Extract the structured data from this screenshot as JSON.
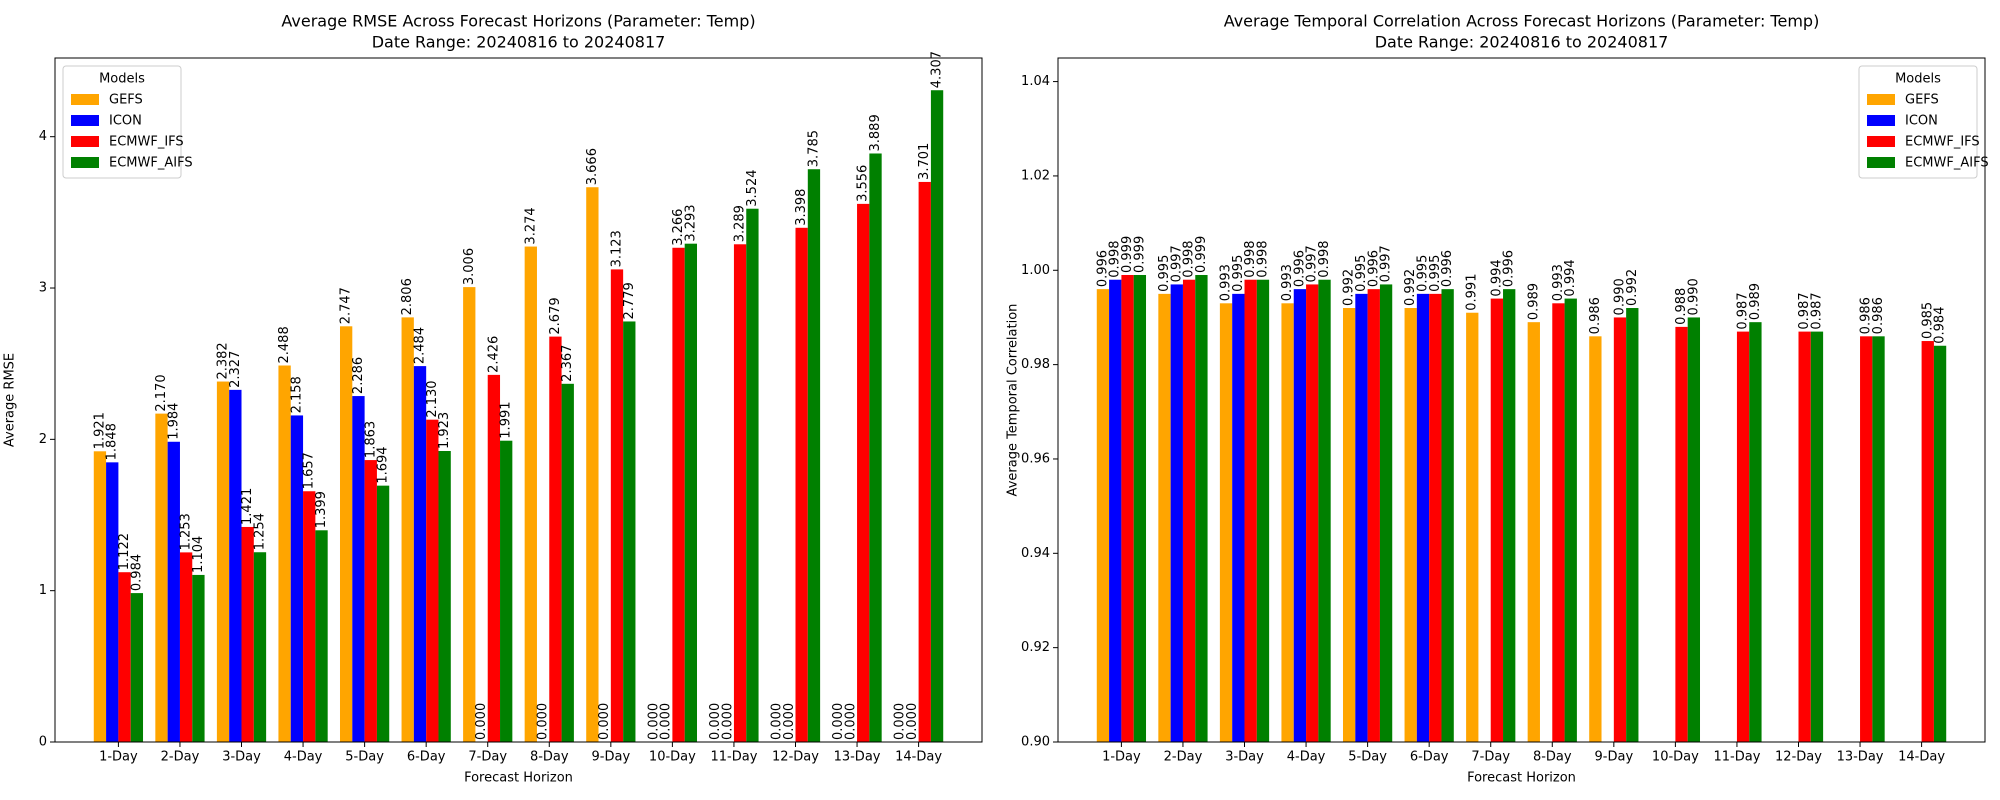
{
  "chart_data": [
    {
      "type": "bar",
      "title": "Average RMSE Across Forecast Horizons (Parameter: Temp)",
      "subtitle": "Date Range: 20240816 to 20240817",
      "xlabel": "Forecast Horizon",
      "ylabel": "Average RMSE",
      "categories": [
        "1-Day",
        "2-Day",
        "3-Day",
        "4-Day",
        "5-Day",
        "6-Day",
        "7-Day",
        "8-Day",
        "9-Day",
        "10-Day",
        "11-Day",
        "12-Day",
        "13-Day",
        "14-Day"
      ],
      "series": [
        {
          "name": "GEFS",
          "color": "#ffa500",
          "values": [
            1.921,
            2.17,
            2.382,
            2.488,
            2.747,
            2.806,
            3.006,
            3.274,
            3.666,
            0,
            0,
            0,
            0,
            0
          ],
          "value_labels": [
            "1.921",
            "2.170",
            "2.382",
            "2.488",
            "2.747",
            "2.806",
            "3.006",
            "3.274",
            "3.666",
            "0.000",
            "0.000",
            "0.000",
            "0.000",
            "0.000"
          ]
        },
        {
          "name": "ICON",
          "color": "#0000ff",
          "values": [
            1.848,
            1.984,
            2.327,
            2.158,
            2.286,
            2.484,
            0,
            0,
            0,
            0,
            0,
            0,
            0,
            0
          ],
          "value_labels": [
            "1.848",
            "1.984",
            "2.327",
            "2.158",
            "2.286",
            "2.484",
            "0.000",
            "0.000",
            "0.000",
            "0.000",
            "0.000",
            "0.000",
            "0.000",
            "0.000"
          ]
        },
        {
          "name": "ECMWF_IFS",
          "color": "#ff0000",
          "values": [
            1.122,
            1.253,
            1.421,
            1.657,
            1.863,
            2.13,
            2.426,
            2.679,
            3.123,
            3.266,
            3.289,
            3.398,
            3.556,
            3.701
          ],
          "value_labels": [
            "1.122",
            "1.253",
            "1.421",
            "1.657",
            "1.863",
            "2.130",
            "2.426",
            "2.679",
            "3.123",
            "3.266",
            "3.289",
            "3.398",
            "3.556",
            "3.701"
          ]
        },
        {
          "name": "ECMWF_AIFS",
          "color": "#008000",
          "values": [
            0.984,
            1.104,
            1.254,
            1.399,
            1.694,
            1.923,
            1.991,
            2.367,
            2.779,
            3.293,
            3.524,
            3.785,
            3.889,
            4.307
          ],
          "value_labels": [
            "0.984",
            "1.104",
            "1.254",
            "1.399",
            "1.694",
            "1.923",
            "1.991",
            "2.367",
            "2.779",
            "3.293",
            "3.524",
            "3.785",
            "3.889",
            "4.307"
          ]
        }
      ],
      "ylim": [
        0,
        4.52
      ],
      "yticks": [
        0,
        1,
        2,
        3,
        4
      ],
      "legend": "upper left",
      "legend_title": "Models"
    },
    {
      "type": "bar",
      "title": "Average Temporal Correlation Across Forecast Horizons (Parameter: Temp)",
      "subtitle": "Date Range: 20240816 to 20240817",
      "xlabel": "Forecast Horizon",
      "ylabel": "Average Temporal Correlation",
      "categories": [
        "1-Day",
        "2-Day",
        "3-Day",
        "4-Day",
        "5-Day",
        "6-Day",
        "7-Day",
        "8-Day",
        "9-Day",
        "10-Day",
        "11-Day",
        "12-Day",
        "13-Day",
        "14-Day"
      ],
      "series": [
        {
          "name": "GEFS",
          "color": "#ffa500",
          "values": [
            0.996,
            0.995,
            0.993,
            0.993,
            0.992,
            0.992,
            0.991,
            0.989,
            0.986,
            null,
            null,
            null,
            null,
            null
          ],
          "value_labels": [
            "0.996",
            "0.995",
            "0.993",
            "0.993",
            "0.992",
            "0.992",
            "0.991",
            "0.989",
            "0.986",
            null,
            null,
            null,
            null,
            null
          ]
        },
        {
          "name": "ICON",
          "color": "#0000ff",
          "values": [
            0.998,
            0.997,
            0.995,
            0.996,
            0.995,
            0.995,
            null,
            null,
            null,
            null,
            null,
            null,
            null,
            null
          ],
          "value_labels": [
            "0.998",
            "0.997",
            "0.995",
            "0.996",
            "0.995",
            "0.995",
            null,
            null,
            null,
            null,
            null,
            null,
            null,
            null
          ]
        },
        {
          "name": "ECMWF_IFS",
          "color": "#ff0000",
          "values": [
            0.999,
            0.998,
            0.998,
            0.997,
            0.996,
            0.995,
            0.994,
            0.993,
            0.99,
            0.988,
            0.987,
            0.987,
            0.986,
            0.985
          ],
          "value_labels": [
            "0.999",
            "0.998",
            "0.998",
            "0.997",
            "0.996",
            "0.995",
            "0.994",
            "0.993",
            "0.990",
            "0.988",
            "0.987",
            "0.987",
            "0.986",
            "0.985"
          ]
        },
        {
          "name": "ECMWF_AIFS",
          "color": "#008000",
          "values": [
            0.999,
            0.999,
            0.998,
            0.998,
            0.997,
            0.996,
            0.996,
            0.994,
            0.992,
            0.99,
            0.989,
            0.987,
            0.986,
            0.984
          ],
          "value_labels": [
            "0.999",
            "0.999",
            "0.998",
            "0.998",
            "0.997",
            "0.996",
            "0.996",
            "0.994",
            "0.992",
            "0.990",
            "0.989",
            "0.987",
            "0.986",
            "0.984"
          ]
        }
      ],
      "ylim": [
        0.9,
        1.045
      ],
      "yticks": [
        {
          "value": 0.9,
          "label": "0.90"
        },
        {
          "value": 0.92,
          "label": "0.92"
        },
        {
          "value": 0.94,
          "label": "0.94"
        },
        {
          "value": 0.96,
          "label": "0.96"
        },
        {
          "value": 0.98,
          "label": "0.98"
        },
        {
          "value": 1.0,
          "label": "1.00"
        },
        {
          "value": 1.02,
          "label": "1.02"
        },
        {
          "value": 1.04,
          "label": "1.04"
        }
      ],
      "legend": "upper right",
      "legend_title": "Models"
    }
  ]
}
